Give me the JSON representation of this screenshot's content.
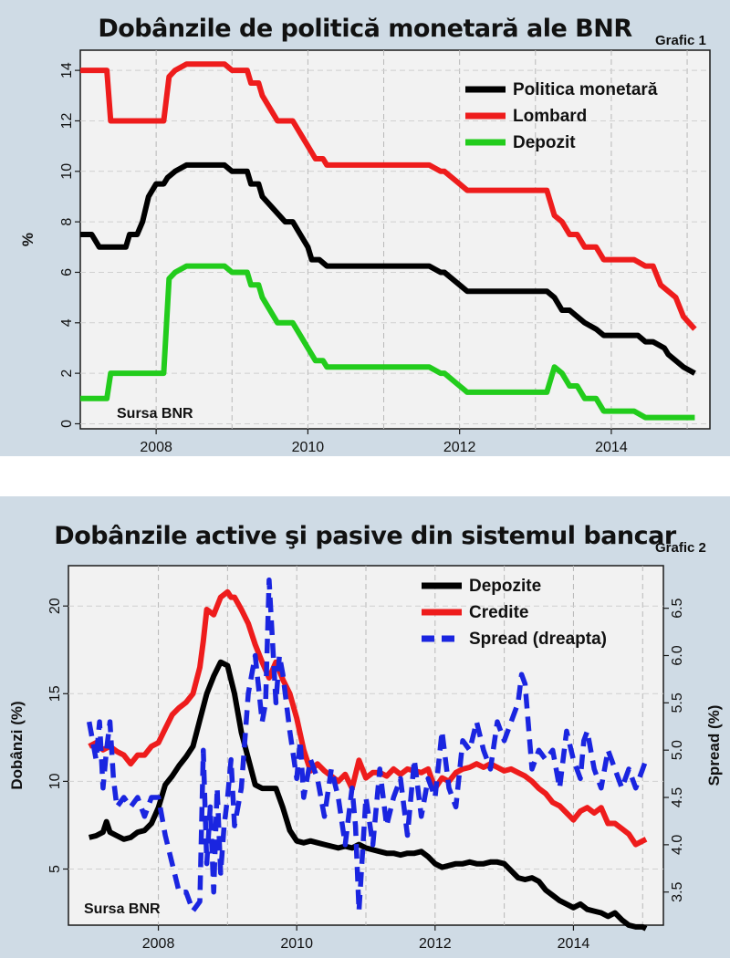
{
  "chart_data": [
    {
      "type": "line",
      "title": "Dobânzile de politică monetară ale BNR",
      "figure_label": "Grafic 1",
      "ylabel": "%",
      "source_note": "Sursa BNR",
      "xlim": [
        2007,
        2015.3
      ],
      "ylim": [
        -0.2,
        14.8
      ],
      "x_ticks": [
        2008,
        2010,
        2012,
        2014
      ],
      "y_ticks": [
        0,
        2,
        4,
        6,
        8,
        10,
        12,
        14
      ],
      "grid": true,
      "legend_position": "top-right",
      "series": [
        {
          "name": "Politica monetară",
          "color": "#000000",
          "x": [
            2007.0,
            2007.15,
            2007.25,
            2007.6,
            2007.65,
            2007.75,
            2007.82,
            2007.9,
            2008.0,
            2008.1,
            2008.15,
            2008.25,
            2008.4,
            2008.5,
            2008.9,
            2009.0,
            2009.2,
            2009.25,
            2009.35,
            2009.4,
            2009.55,
            2009.7,
            2009.8,
            2009.9,
            2010.0,
            2010.05,
            2010.15,
            2010.25,
            2010.4,
            2011.6,
            2011.75,
            2011.8,
            2012.0,
            2012.1,
            2013.0,
            2013.15,
            2013.25,
            2013.35,
            2013.45,
            2013.55,
            2013.65,
            2013.8,
            2013.9,
            2014.35,
            2014.45,
            2014.55,
            2014.7,
            2014.75,
            2014.85,
            2014.95,
            2015.1
          ],
          "y": [
            7.5,
            7.5,
            7.0,
            7.0,
            7.5,
            7.5,
            8.0,
            9.0,
            9.5,
            9.5,
            9.75,
            10.0,
            10.25,
            10.25,
            10.25,
            10.0,
            10.0,
            9.5,
            9.5,
            9.0,
            8.5,
            8.0,
            8.0,
            7.5,
            7.0,
            6.5,
            6.5,
            6.25,
            6.25,
            6.25,
            6.0,
            6.0,
            5.5,
            5.25,
            5.25,
            5.25,
            5.0,
            4.5,
            4.5,
            4.25,
            4.0,
            3.75,
            3.5,
            3.5,
            3.25,
            3.25,
            3.0,
            2.75,
            2.5,
            2.25,
            2.0
          ]
        },
        {
          "name": "Lombard",
          "color": "#ee1c1c",
          "x": [
            2007.0,
            2007.35,
            2007.4,
            2008.1,
            2008.17,
            2008.25,
            2008.4,
            2008.9,
            2009.0,
            2009.2,
            2009.25,
            2009.35,
            2009.4,
            2009.6,
            2009.8,
            2009.9,
            2010.0,
            2010.1,
            2010.2,
            2010.25,
            2011.6,
            2011.75,
            2011.8,
            2012.0,
            2012.1,
            2013.0,
            2013.15,
            2013.25,
            2013.35,
            2013.45,
            2013.55,
            2013.65,
            2013.8,
            2013.9,
            2014.3,
            2014.45,
            2014.55,
            2014.65,
            2014.75,
            2014.85,
            2014.95,
            2015.1
          ],
          "y": [
            14.0,
            14.0,
            12.0,
            12.0,
            13.75,
            14.0,
            14.25,
            14.25,
            14.0,
            14.0,
            13.5,
            13.5,
            13.0,
            12.0,
            12.0,
            11.5,
            11.0,
            10.5,
            10.5,
            10.25,
            10.25,
            10.0,
            10.0,
            9.5,
            9.25,
            9.25,
            9.25,
            8.25,
            8.0,
            7.5,
            7.5,
            7.0,
            7.0,
            6.5,
            6.5,
            6.25,
            6.25,
            5.5,
            5.25,
            5.0,
            4.25,
            3.75
          ]
        },
        {
          "name": "Depozit",
          "color": "#22cc1c",
          "x": [
            2007.0,
            2007.35,
            2007.4,
            2008.1,
            2008.17,
            2008.25,
            2008.4,
            2008.9,
            2009.0,
            2009.2,
            2009.25,
            2009.35,
            2009.4,
            2009.6,
            2009.8,
            2009.9,
            2010.0,
            2010.1,
            2010.2,
            2010.25,
            2011.6,
            2011.75,
            2011.8,
            2012.0,
            2012.1,
            2013.0,
            2013.15,
            2013.25,
            2013.35,
            2013.45,
            2013.55,
            2013.65,
            2013.8,
            2013.9,
            2014.3,
            2014.45,
            2014.55,
            2015.1
          ],
          "y": [
            1.0,
            1.0,
            2.0,
            2.0,
            5.75,
            6.0,
            6.25,
            6.25,
            6.0,
            6.0,
            5.5,
            5.5,
            5.0,
            4.0,
            4.0,
            3.5,
            3.0,
            2.5,
            2.5,
            2.25,
            2.25,
            2.0,
            2.0,
            1.5,
            1.25,
            1.25,
            1.25,
            2.25,
            2.0,
            1.5,
            1.5,
            1.0,
            1.0,
            0.5,
            0.5,
            0.25,
            0.25,
            0.25
          ]
        }
      ]
    },
    {
      "type": "line",
      "title": "Dobânzile active şi pasive din sistemul bancar",
      "figure_label": "Grafic 2",
      "ylabel": "Dobânzi (%)",
      "ylabel_right": "Spread (%)",
      "source_note": "Sursa BNR",
      "xlim": [
        2006.7,
        2015.3
      ],
      "ylim": [
        1.8,
        22.3
      ],
      "ylim_right": [
        3.15,
        6.95
      ],
      "x_ticks": [
        2008,
        2010,
        2012,
        2014
      ],
      "y_ticks": [
        5,
        10,
        15,
        20
      ],
      "y_ticks_right": [
        3.5,
        4.0,
        4.5,
        5.0,
        5.5,
        6.0,
        6.5
      ],
      "grid": true,
      "legend_position": "top-right",
      "series": [
        {
          "name": "Depozite",
          "color": "#000000",
          "axis": "left",
          "x": [
            2007.0,
            2007.1,
            2007.2,
            2007.25,
            2007.3,
            2007.4,
            2007.5,
            2007.6,
            2007.7,
            2007.8,
            2007.9,
            2008.0,
            2008.1,
            2008.2,
            2008.3,
            2008.4,
            2008.5,
            2008.6,
            2008.7,
            2008.8,
            2008.9,
            2009.0,
            2009.1,
            2009.2,
            2009.3,
            2009.4,
            2009.5,
            2009.6,
            2009.7,
            2009.8,
            2009.9,
            2010.0,
            2010.1,
            2010.2,
            2010.3,
            2010.4,
            2010.5,
            2010.6,
            2010.7,
            2010.8,
            2010.9,
            2011.0,
            2011.1,
            2011.2,
            2011.3,
            2011.4,
            2011.5,
            2011.6,
            2011.7,
            2011.8,
            2011.9,
            2012.0,
            2012.1,
            2012.2,
            2012.3,
            2012.4,
            2012.5,
            2012.6,
            2012.7,
            2012.8,
            2012.9,
            2013.0,
            2013.1,
            2013.2,
            2013.3,
            2013.4,
            2013.5,
            2013.6,
            2013.7,
            2013.8,
            2013.9,
            2014.0,
            2014.1,
            2014.2,
            2014.3,
            2014.4,
            2014.5,
            2014.6,
            2014.7,
            2014.8,
            2014.9,
            2015.0,
            2015.05
          ],
          "y": [
            6.8,
            6.9,
            7.1,
            7.7,
            7.1,
            6.9,
            6.7,
            6.8,
            7.1,
            7.2,
            7.6,
            8.5,
            9.8,
            10.3,
            10.9,
            11.4,
            12.0,
            13.5,
            15.0,
            16.0,
            16.8,
            16.6,
            15.0,
            12.8,
            11.3,
            9.8,
            9.6,
            9.6,
            9.6,
            8.5,
            7.2,
            6.6,
            6.5,
            6.6,
            6.5,
            6.4,
            6.3,
            6.2,
            6.3,
            6.2,
            6.4,
            6.2,
            6.1,
            6.0,
            5.9,
            5.9,
            5.8,
            5.9,
            5.9,
            6.0,
            5.7,
            5.3,
            5.1,
            5.2,
            5.3,
            5.3,
            5.4,
            5.3,
            5.3,
            5.4,
            5.4,
            5.3,
            4.9,
            4.5,
            4.4,
            4.5,
            4.3,
            3.8,
            3.5,
            3.2,
            3.0,
            2.8,
            3.0,
            2.7,
            2.6,
            2.5,
            2.3,
            2.5,
            2.1,
            1.8,
            1.7,
            1.7,
            1.6
          ]
        },
        {
          "name": "Credite",
          "color": "#ee1c1c",
          "axis": "left",
          "x": [
            2007.0,
            2007.1,
            2007.2,
            2007.3,
            2007.4,
            2007.5,
            2007.6,
            2007.7,
            2007.8,
            2007.9,
            2008.0,
            2008.1,
            2008.2,
            2008.3,
            2008.4,
            2008.5,
            2008.6,
            2008.65,
            2008.7,
            2008.8,
            2008.9,
            2009.0,
            2009.05,
            2009.1,
            2009.2,
            2009.3,
            2009.4,
            2009.5,
            2009.6,
            2009.7,
            2009.8,
            2009.9,
            2010.0,
            2010.1,
            2010.2,
            2010.3,
            2010.4,
            2010.5,
            2010.6,
            2010.7,
            2010.8,
            2010.9,
            2011.0,
            2011.1,
            2011.2,
            2011.3,
            2011.4,
            2011.5,
            2011.6,
            2011.7,
            2011.8,
            2011.9,
            2012.0,
            2012.1,
            2012.2,
            2012.3,
            2012.4,
            2012.5,
            2012.6,
            2012.7,
            2012.8,
            2012.9,
            2013.0,
            2013.1,
            2013.2,
            2013.3,
            2013.4,
            2013.5,
            2013.6,
            2013.7,
            2013.8,
            2013.9,
            2014.0,
            2014.1,
            2014.2,
            2014.3,
            2014.4,
            2014.5,
            2014.6,
            2014.7,
            2014.8,
            2014.9,
            2015.0,
            2015.05
          ],
          "y": [
            12.0,
            12.2,
            11.8,
            12.0,
            11.7,
            11.5,
            11.0,
            11.5,
            11.5,
            12.0,
            12.2,
            13.0,
            13.8,
            14.2,
            14.5,
            15.0,
            16.5,
            18.0,
            19.8,
            19.5,
            20.5,
            20.8,
            20.5,
            20.5,
            19.8,
            19.0,
            17.8,
            16.8,
            15.9,
            16.8,
            15.8,
            15.0,
            13.6,
            11.8,
            10.6,
            11.0,
            10.6,
            10.3,
            10.0,
            10.4,
            9.6,
            11.2,
            10.2,
            10.5,
            10.5,
            10.3,
            10.7,
            10.4,
            10.7,
            10.6,
            10.5,
            10.7,
            9.6,
            10.2,
            10.0,
            10.5,
            10.7,
            10.8,
            11.0,
            10.8,
            11.0,
            10.8,
            10.6,
            10.7,
            10.5,
            10.3,
            10.0,
            9.6,
            9.3,
            8.8,
            8.6,
            8.2,
            7.8,
            8.3,
            8.5,
            8.2,
            8.5,
            7.6,
            7.6,
            7.3,
            7.0,
            6.4,
            6.6,
            6.7
          ]
        },
        {
          "name": "Spread (dreapta)",
          "color": "#1a25e0",
          "axis": "right",
          "dashed": true,
          "x": [
            2007.0,
            2007.1,
            2007.15,
            2007.2,
            2007.25,
            2007.3,
            2007.35,
            2007.4,
            2007.5,
            2007.6,
            2007.7,
            2007.8,
            2007.9,
            2008.0,
            2008.1,
            2008.2,
            2008.3,
            2008.4,
            2008.5,
            2008.6,
            2008.65,
            2008.7,
            2008.75,
            2008.8,
            2008.85,
            2008.9,
            2008.95,
            2009.0,
            2009.05,
            2009.1,
            2009.2,
            2009.3,
            2009.4,
            2009.5,
            2009.55,
            2009.6,
            2009.7,
            2009.75,
            2009.8,
            2009.9,
            2010.0,
            2010.05,
            2010.1,
            2010.2,
            2010.3,
            2010.4,
            2010.5,
            2010.6,
            2010.7,
            2010.8,
            2010.85,
            2010.9,
            2011.0,
            2011.1,
            2011.2,
            2011.3,
            2011.4,
            2011.5,
            2011.6,
            2011.7,
            2011.8,
            2011.9,
            2012.0,
            2012.1,
            2012.2,
            2012.3,
            2012.4,
            2012.5,
            2012.6,
            2012.7,
            2012.8,
            2012.9,
            2013.0,
            2013.1,
            2013.2,
            2013.25,
            2013.3,
            2013.4,
            2013.5,
            2013.6,
            2013.7,
            2013.8,
            2013.9,
            2014.0,
            2014.1,
            2014.15,
            2014.2,
            2014.3,
            2014.4,
            2014.5,
            2014.6,
            2014.7,
            2014.8,
            2014.9,
            2015.0,
            2015.05
          ],
          "y": [
            5.3,
            4.9,
            5.3,
            4.6,
            5.0,
            5.3,
            4.7,
            4.4,
            4.5,
            4.4,
            4.5,
            4.3,
            4.5,
            4.5,
            4.1,
            3.8,
            3.5,
            3.5,
            3.3,
            3.4,
            5.0,
            3.8,
            4.4,
            3.5,
            4.6,
            3.7,
            4.2,
            4.5,
            4.9,
            4.2,
            4.6,
            5.6,
            6.0,
            5.3,
            5.5,
            6.8,
            5.5,
            6.0,
            5.8,
            5.2,
            4.7,
            5.1,
            4.5,
            4.9,
            4.7,
            4.3,
            4.8,
            4.5,
            4.0,
            4.6,
            4.2,
            3.3,
            4.5,
            4.0,
            4.8,
            4.2,
            4.5,
            4.7,
            4.1,
            4.9,
            4.3,
            4.7,
            4.5,
            5.2,
            4.6,
            4.4,
            5.1,
            5.0,
            5.3,
            5.0,
            4.8,
            5.3,
            5.1,
            5.3,
            5.5,
            5.8,
            5.7,
            4.8,
            5.0,
            4.9,
            5.0,
            4.6,
            5.2,
            4.9,
            4.7,
            5.1,
            5.2,
            4.8,
            4.6,
            5.0,
            4.8,
            4.6,
            4.8,
            4.6,
            4.8,
            4.9
          ]
        }
      ]
    }
  ]
}
